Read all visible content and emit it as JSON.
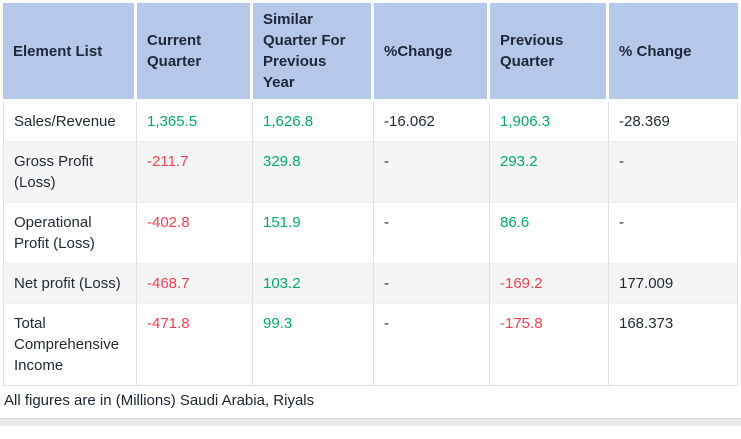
{
  "table": {
    "columns": [
      {
        "label": "Element List"
      },
      {
        "label": "Current Quarter"
      },
      {
        "label": "Similar Quarter For Previous Year"
      },
      {
        "label": "%Change"
      },
      {
        "label": "Previous Quarter"
      },
      {
        "label": "% Change"
      }
    ],
    "rows": [
      {
        "label": "Sales/Revenue",
        "cells": [
          {
            "value": "1,365.5",
            "color": "green"
          },
          {
            "value": "1,626.8",
            "color": "green"
          },
          {
            "value": "-16.062",
            "color": "dark"
          },
          {
            "value": "1,906.3",
            "color": "green"
          },
          {
            "value": "-28.369",
            "color": "dark"
          }
        ]
      },
      {
        "label": "Gross Profit (Loss)",
        "cells": [
          {
            "value": "-211.7",
            "color": "red"
          },
          {
            "value": "329.8",
            "color": "green"
          },
          {
            "value": "-",
            "color": "dark"
          },
          {
            "value": "293.2",
            "color": "green"
          },
          {
            "value": "-",
            "color": "dark"
          }
        ]
      },
      {
        "label": "Operational Profit (Loss)",
        "cells": [
          {
            "value": "-402.8",
            "color": "red"
          },
          {
            "value": "151.9",
            "color": "green"
          },
          {
            "value": "-",
            "color": "dark"
          },
          {
            "value": "86.6",
            "color": "green"
          },
          {
            "value": "-",
            "color": "dark"
          }
        ]
      },
      {
        "label": "Net profit (Loss)",
        "cells": [
          {
            "value": "-468.7",
            "color": "red"
          },
          {
            "value": "103.2",
            "color": "green"
          },
          {
            "value": "-",
            "color": "dark"
          },
          {
            "value": "-169.2",
            "color": "red"
          },
          {
            "value": "177.009",
            "color": "dark"
          }
        ]
      },
      {
        "label": "Total Comprehensive Income",
        "cells": [
          {
            "value": "-471.8",
            "color": "red"
          },
          {
            "value": "99.3",
            "color": "green"
          },
          {
            "value": "-",
            "color": "dark"
          },
          {
            "value": "-175.8",
            "color": "red"
          },
          {
            "value": "168.373",
            "color": "dark"
          }
        ]
      }
    ]
  },
  "footer": {
    "note": "All figures are in (Millions) Saudi Arabia, Riyals"
  },
  "colors": {
    "header_bg": "#b5c8ea",
    "header_text": "#20293a",
    "body_text": "#212b36",
    "positive": "#00ab68",
    "negative": "#f4414f",
    "stripe": "#f5f5f6",
    "divider": "#e0e0e0",
    "bottom_bar": "#e9e9e9"
  }
}
